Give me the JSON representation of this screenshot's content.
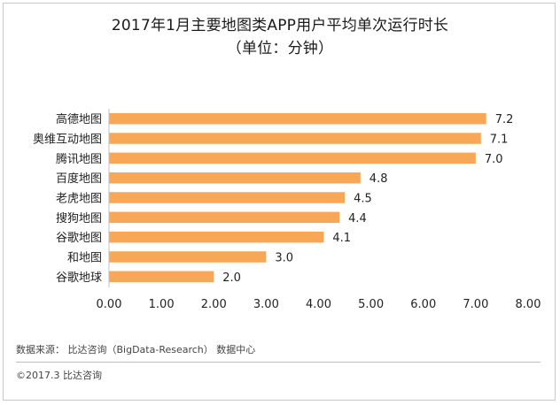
{
  "chart_data": {
    "type": "bar",
    "orientation": "horizontal",
    "title": "2017年1月主要地图类APP用户平均单次运行时长",
    "subtitle": "（单位：分钟）",
    "categories": [
      "高德地图",
      "奥维互动地图",
      "腾讯地图",
      "百度地图",
      "老虎地图",
      "搜狗地图",
      "谷歌地图",
      "和地图",
      "谷歌地球"
    ],
    "values": [
      7.2,
      7.1,
      7.0,
      4.8,
      4.5,
      4.4,
      4.1,
      3.0,
      2.0
    ],
    "value_labels": [
      "7.2",
      "7.1",
      "7.0",
      "4.8",
      "4.5",
      "4.4",
      "4.1",
      "3.0",
      "2.0"
    ],
    "xlim": [
      0,
      8
    ],
    "x_ticks": [
      0,
      1,
      2,
      3,
      4,
      5,
      6,
      7,
      8
    ],
    "x_tick_labels": [
      "0.00",
      "1.00",
      "2.00",
      "3.00",
      "4.00",
      "5.00",
      "6.00",
      "7.00",
      "8.00"
    ],
    "xlabel": "",
    "ylabel": "",
    "grid": false,
    "legend": false,
    "bar_color": "#f7a755"
  },
  "footer": {
    "source": "数据来源： 比达咨询（BigData-Research） 数据中心",
    "copyright": "©2017.3 比达咨询"
  }
}
